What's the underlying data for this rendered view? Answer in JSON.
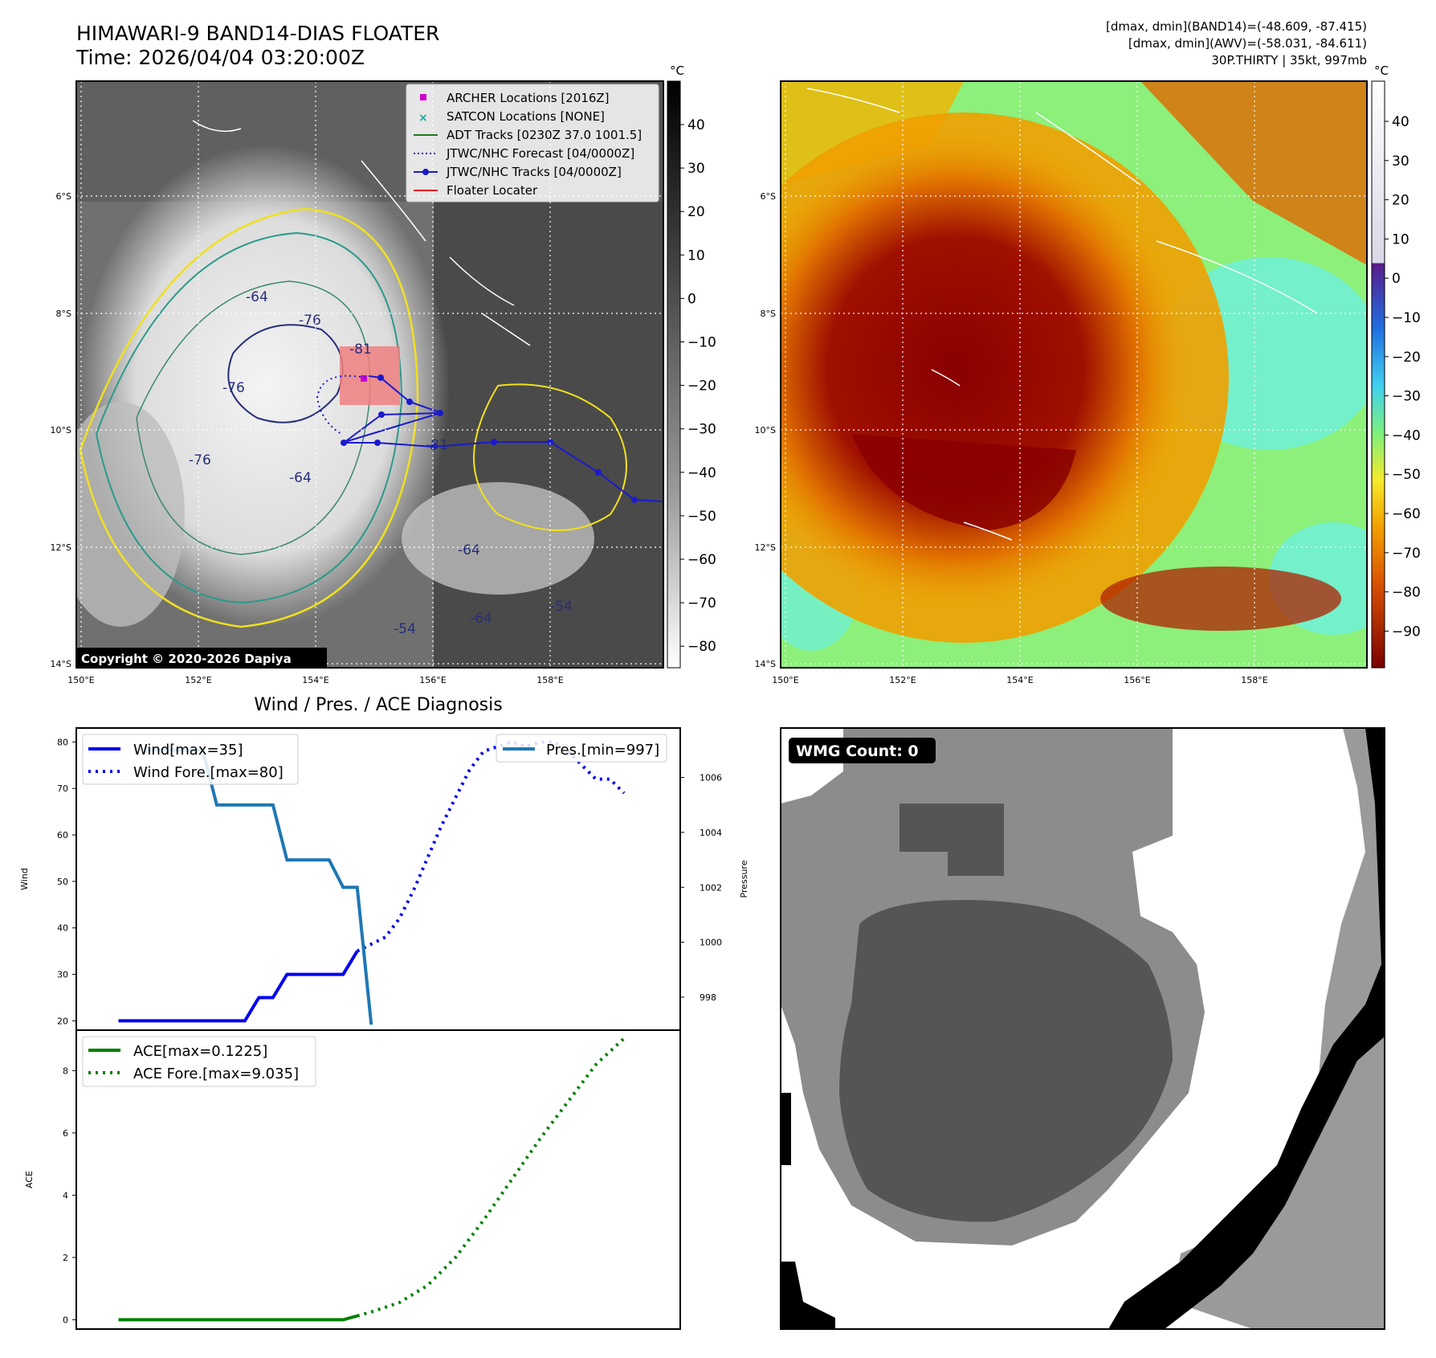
{
  "header": {
    "title_line1": "HIMAWARI-9 BAND14-DIAS FLOATER",
    "title_line2": "Time: 2026/04/04 03:20:00Z",
    "info_line1": "[dmax, dmin](BAND14)=(-48.609, -87.415)",
    "info_line2": "[dmax, dmin](AWV)=(-58.031, -84.611)",
    "info_line3": "30P.THIRTY | 35kt, 997mb"
  },
  "map": {
    "lat_labels": [
      "6°S",
      "8°S",
      "10°S",
      "12°S",
      "14°S"
    ],
    "lon_labels": [
      "150°E",
      "152°E",
      "154°E",
      "156°E",
      "158°E"
    ],
    "copyright": "Copyright © 2020-2026 Dapiya",
    "contour_labels": [
      "-76",
      "-76",
      "-64",
      "-76",
      "-64",
      "-81",
      "-64",
      "-81",
      "-54",
      "-64",
      "-54"
    ],
    "legend": [
      {
        "label": "ARCHER Locations [2016Z]",
        "color": "#cc00cc",
        "kind": "square"
      },
      {
        "label": "SATCON Locations [NONE]",
        "color": "#1aa89a",
        "kind": "x"
      },
      {
        "label": "ADT Tracks [0230Z 37.0 1001.5]",
        "color": "#1a7a1a",
        "kind": "line"
      },
      {
        "label": "JTWC/NHC Forecast [04/0000Z]",
        "color": "#1a1acc",
        "kind": "dotted"
      },
      {
        "label": "JTWC/NHC Tracks [04/0000Z]",
        "color": "#1a1acc",
        "kind": "line-dot"
      },
      {
        "label": "Floater Locater",
        "color": "#e01010",
        "kind": "line"
      }
    ]
  },
  "colorbar_ir": {
    "unit": "°C",
    "ticks": [
      "40",
      "30",
      "20",
      "10",
      "0",
      "−10",
      "−20",
      "−30",
      "−40",
      "−50",
      "−60",
      "−70",
      "−80"
    ]
  },
  "colorbar_awv": {
    "unit": "°C",
    "ticks": [
      "40",
      "30",
      "20",
      "10",
      "0",
      "−10",
      "−20",
      "−30",
      "−40",
      "−50",
      "−60",
      "−70",
      "−80",
      "−90"
    ]
  },
  "diagnosis_title": "Wind / Pres. / ACE Diagnosis",
  "wmg_label": "WMG Count: 0",
  "chart_data": [
    {
      "type": "line",
      "title": "Wind / Pres. / ACE Diagnosis",
      "ylabel": "Wind",
      "y2label": "Pressure",
      "ylim": [
        18,
        83
      ],
      "y2lim": [
        996.8,
        1007.8
      ],
      "yticks": [
        20,
        30,
        40,
        50,
        60,
        70,
        80
      ],
      "y2ticks": [
        998,
        1000,
        1002,
        1004,
        1006
      ],
      "series": [
        {
          "name": "Wind[max=35]",
          "color": "#0000ee",
          "style": "solid",
          "axis": "left",
          "x": [
            0,
            9,
            10,
            11,
            12,
            13,
            15,
            16,
            17
          ],
          "values": [
            20,
            20,
            25,
            25,
            30,
            30,
            30,
            30,
            35
          ]
        },
        {
          "name": "Wind Fore.[max=80]",
          "color": "#0000ee",
          "style": "dotted",
          "axis": "left",
          "x": [
            17,
            19,
            20,
            21,
            22,
            23,
            24,
            25,
            26,
            27,
            28,
            29,
            30,
            31,
            32,
            33,
            34,
            35,
            36
          ],
          "values": [
            35,
            38,
            42,
            48,
            55,
            62,
            68,
            74,
            78,
            79,
            80,
            79,
            80,
            80,
            78,
            75,
            72,
            72,
            69
          ]
        },
        {
          "name": "Pres.[min=997]",
          "color": "#1f77b4",
          "style": "solid",
          "axis": "right",
          "x": [
            2,
            6,
            7,
            11,
            12,
            15,
            16,
            17,
            18
          ],
          "values": [
            1007,
            1007,
            1005,
            1005,
            1003,
            1003,
            1002,
            1002,
            997
          ]
        }
      ]
    },
    {
      "type": "line",
      "ylabel": "ACE",
      "ylim": [
        -0.3,
        9.3
      ],
      "yticks": [
        0,
        2,
        4,
        6,
        8
      ],
      "series": [
        {
          "name": "ACE[max=0.1225]",
          "color": "#008000",
          "style": "solid",
          "x": [
            0,
            15,
            16,
            17
          ],
          "values": [
            0,
            0,
            0,
            0.1225
          ]
        },
        {
          "name": "ACE Fore.[max=9.035]",
          "color": "#008000",
          "style": "dotted",
          "x": [
            17,
            18,
            20,
            22,
            24,
            26,
            28,
            30,
            32,
            34,
            36
          ],
          "values": [
            0.1225,
            0.25,
            0.55,
            1.1,
            2.0,
            3.2,
            4.5,
            5.8,
            7.0,
            8.2,
            9.035
          ]
        }
      ]
    }
  ]
}
